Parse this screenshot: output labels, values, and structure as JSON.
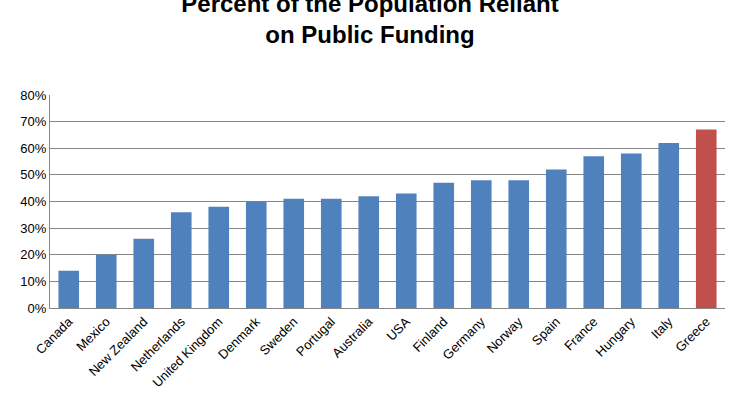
{
  "chart_data": {
    "type": "bar",
    "title": "Percent of the Population Reliant on Public Funding",
    "categories": [
      "Canada",
      "Mexico",
      "New Zealand",
      "Netherlands",
      "United Kingdom",
      "Denmark",
      "Sweden",
      "Portugal",
      "Australia",
      "USA",
      "Finland",
      "Germany",
      "Norway",
      "Spain",
      "France",
      "Hungary",
      "Italy",
      "Greece"
    ],
    "values": [
      14,
      20,
      26,
      36,
      38,
      40,
      41,
      41,
      42,
      43,
      47,
      48,
      48,
      52,
      57,
      58,
      62,
      67
    ],
    "colors": [
      "#4f81bd",
      "#4f81bd",
      "#4f81bd",
      "#4f81bd",
      "#4f81bd",
      "#4f81bd",
      "#4f81bd",
      "#4f81bd",
      "#4f81bd",
      "#4f81bd",
      "#4f81bd",
      "#4f81bd",
      "#4f81bd",
      "#4f81bd",
      "#4f81bd",
      "#4f81bd",
      "#4f81bd",
      "#c0504d"
    ],
    "ylim": [
      0,
      80
    ],
    "yticks": [
      {
        "value": 0,
        "label": "0%"
      },
      {
        "value": 10,
        "label": "10%"
      },
      {
        "value": 20,
        "label": "20%"
      },
      {
        "value": 30,
        "label": "30%"
      },
      {
        "value": 40,
        "label": "40%"
      },
      {
        "value": 50,
        "label": "50%"
      },
      {
        "value": 60,
        "label": "60%"
      },
      {
        "value": 70,
        "label": "70%"
      },
      {
        "value": 80,
        "label": "80%"
      }
    ],
    "grid": true
  }
}
